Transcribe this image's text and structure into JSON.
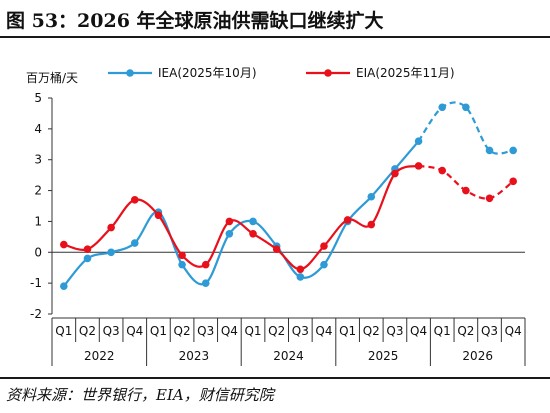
{
  "title": "图 53：2026 年全球原油供需缺口继续扩大",
  "source": "资料来源：世界银行，EIA，财信研究院",
  "chart_data": {
    "type": "line",
    "ylabel": "百万桶/天",
    "ylim": [
      -2,
      5
    ],
    "yticks": [
      -2,
      -1,
      0,
      1,
      2,
      3,
      4,
      5
    ],
    "categories": [
      "Q1",
      "Q2",
      "Q3",
      "Q4",
      "Q1",
      "Q2",
      "Q3",
      "Q4",
      "Q1",
      "Q2",
      "Q3",
      "Q4",
      "Q1",
      "Q2",
      "Q3",
      "Q4",
      "Q1",
      "Q2",
      "Q3",
      "Q4"
    ],
    "years": [
      "2022",
      "2023",
      "2024",
      "2025",
      "2026"
    ],
    "legend_position": "top",
    "grid": false,
    "series": [
      {
        "name": "IEA(2025年10月)",
        "color": "#2E9AD6",
        "values": [
          -1.1,
          -0.2,
          0.0,
          0.3,
          1.3,
          -0.4,
          -1.0,
          0.6,
          1.0,
          0.2,
          -0.8,
          -0.4,
          1.0,
          1.8,
          2.7,
          3.6,
          4.7,
          4.7,
          3.3,
          3.3
        ],
        "dashed_from_index": 15
      },
      {
        "name": "EIA(2025年11月)",
        "color": "#E8101B",
        "values": [
          0.25,
          0.1,
          0.8,
          1.7,
          1.2,
          -0.1,
          -0.4,
          1.0,
          0.6,
          0.1,
          -0.55,
          0.2,
          1.05,
          0.9,
          2.55,
          2.8,
          2.65,
          2.0,
          1.75,
          2.3
        ],
        "dashed_from_index": 15
      }
    ]
  }
}
